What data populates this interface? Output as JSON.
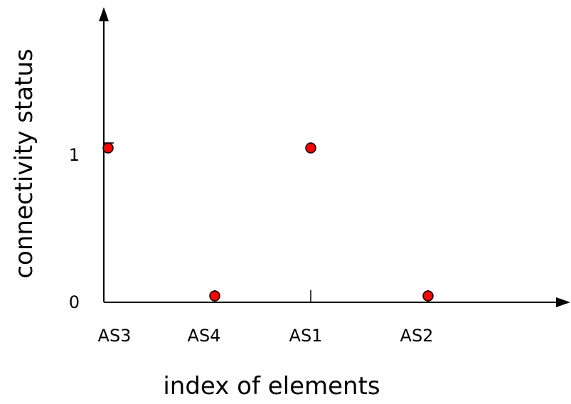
{
  "chart_data": {
    "type": "scatter",
    "title": "",
    "xlabel": "index of elements",
    "ylabel": "connectivity status",
    "categories": [
      "AS3",
      "AS4",
      "AS1",
      "AS2"
    ],
    "x": [
      0,
      1,
      1.9,
      3
    ],
    "y": [
      1,
      0,
      1,
      0
    ],
    "y_ticks": [
      "0",
      "1"
    ],
    "ylim": [
      0,
      1
    ],
    "grid": false,
    "legend": "none",
    "colors": {
      "marker": "#ff0000",
      "marker_edge": "#000000",
      "axis": "#000000"
    }
  }
}
